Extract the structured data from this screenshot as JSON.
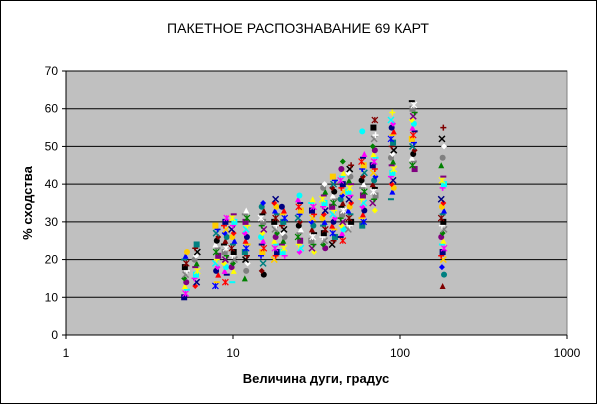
{
  "chart_data": {
    "type": "scatter",
    "title": "ПАКЕТНОЕ РАСПОЗНАВАНИЕ 69 КАРТ",
    "xlabel": "Величина дуги, градус",
    "ylabel": "% сходства",
    "x_scale": "log",
    "xlim": [
      1,
      1000
    ],
    "ylim": [
      0,
      70
    ],
    "x_ticks": [
      "1",
      "10",
      "100",
      "1000"
    ],
    "y_ticks": [
      "0",
      "10",
      "20",
      "30",
      "40",
      "50",
      "60",
      "70"
    ],
    "grid": "horizontal",
    "legend": "none",
    "plot_background": "#c0c0c0",
    "gridline_color": "#000000",
    "series_colors": [
      "#000080",
      "#ff00ff",
      "#00ffff",
      "#ffff00",
      "#800080",
      "#008000",
      "#808080",
      "#ffffff",
      "#000000",
      "#800000",
      "#008080",
      "#0000ff",
      "#ffcc00",
      "#ff0000"
    ],
    "groups": [
      {
        "x": 5.2,
        "values": [
          10,
          11,
          12,
          13,
          14,
          15,
          16,
          17,
          18,
          19,
          20,
          21,
          22
        ]
      },
      {
        "x": 6,
        "values": [
          13,
          14,
          15,
          16,
          17,
          18,
          19,
          20,
          21,
          22,
          23,
          24
        ]
      },
      {
        "x": 8,
        "values": [
          13,
          14,
          16,
          17,
          18,
          19,
          20,
          21,
          22,
          23,
          24,
          25,
          26,
          27,
          28,
          29
        ]
      },
      {
        "x": 9,
        "values": [
          14,
          16,
          17,
          18,
          19,
          20,
          21,
          22,
          23,
          24,
          25,
          26,
          27,
          28,
          29,
          30,
          31
        ]
      },
      {
        "x": 10,
        "values": [
          14,
          17,
          18,
          19,
          20,
          21,
          22,
          23,
          24,
          25,
          26,
          27,
          28,
          29,
          30,
          31,
          32
        ]
      },
      {
        "x": 12,
        "values": [
          15,
          17,
          19,
          20,
          21,
          22,
          23,
          24,
          25,
          26,
          27,
          28,
          29,
          30,
          31,
          32,
          33
        ]
      },
      {
        "x": 15,
        "values": [
          16,
          17,
          19,
          21,
          22,
          23,
          24,
          25,
          26,
          27,
          28,
          29,
          30,
          31,
          32,
          33,
          34,
          35
        ]
      },
      {
        "x": 18,
        "values": [
          20,
          21,
          22,
          23,
          24,
          25,
          26,
          27,
          28,
          29,
          30,
          31,
          32,
          33,
          34,
          35,
          36
        ]
      },
      {
        "x": 20,
        "values": [
          21,
          22,
          23,
          24,
          25,
          26,
          27,
          28,
          29,
          30,
          31,
          32,
          33,
          34
        ]
      },
      {
        "x": 25,
        "values": [
          22,
          23,
          24,
          25,
          26,
          27,
          28,
          29,
          30,
          31,
          32,
          33,
          34,
          35,
          36,
          37
        ]
      },
      {
        "x": 30,
        "values": [
          22,
          23,
          24,
          25,
          26,
          27,
          28,
          29,
          30,
          31,
          32,
          33,
          34,
          35,
          36
        ]
      },
      {
        "x": 35,
        "values": [
          23,
          24,
          25,
          26,
          27,
          28,
          29,
          30,
          31,
          32,
          33,
          34,
          35,
          36,
          37,
          38,
          39,
          40
        ]
      },
      {
        "x": 40,
        "values": [
          24,
          25,
          26,
          27,
          28,
          29,
          30,
          31,
          32,
          33,
          34,
          35,
          36,
          37,
          38,
          39,
          40,
          41,
          42
        ]
      },
      {
        "x": 45,
        "values": [
          25,
          26,
          27,
          28,
          29,
          30,
          31,
          32,
          33,
          34,
          35,
          36,
          37,
          38,
          39,
          40,
          41,
          42,
          43,
          44,
          46
        ]
      },
      {
        "x": 50,
        "values": [
          28,
          29,
          30,
          31,
          32,
          33,
          34,
          35,
          36,
          37,
          38,
          39,
          40,
          41,
          42,
          43,
          44,
          45
        ]
      },
      {
        "x": 60,
        "values": [
          29,
          30,
          31,
          32,
          33,
          34,
          35,
          36,
          37,
          38,
          39,
          40,
          41,
          42,
          43,
          44,
          45,
          46,
          47,
          48,
          54
        ]
      },
      {
        "x": 70,
        "values": [
          33,
          35,
          36,
          37,
          38,
          39,
          40,
          41,
          42,
          43,
          44,
          45,
          46,
          47,
          48,
          49,
          50,
          52,
          53,
          55,
          57
        ]
      },
      {
        "x": 90,
        "values": [
          36,
          38,
          39,
          40,
          41,
          42,
          43,
          44,
          45,
          46,
          47,
          48,
          49,
          50,
          51,
          52,
          53,
          54,
          55,
          56,
          57,
          59
        ]
      },
      {
        "x": 120,
        "values": [
          44,
          45,
          46,
          47,
          48,
          49,
          50,
          51,
          52,
          53,
          54,
          55,
          56,
          57,
          58,
          59,
          60,
          61,
          62
        ]
      },
      {
        "x": 180,
        "values": [
          13,
          16,
          18,
          20,
          21,
          22,
          23,
          24,
          25,
          26,
          27,
          28,
          29,
          30,
          31,
          32,
          33,
          34,
          35,
          36,
          39,
          40,
          41,
          42,
          45,
          47,
          50,
          52,
          55
        ]
      }
    ]
  }
}
